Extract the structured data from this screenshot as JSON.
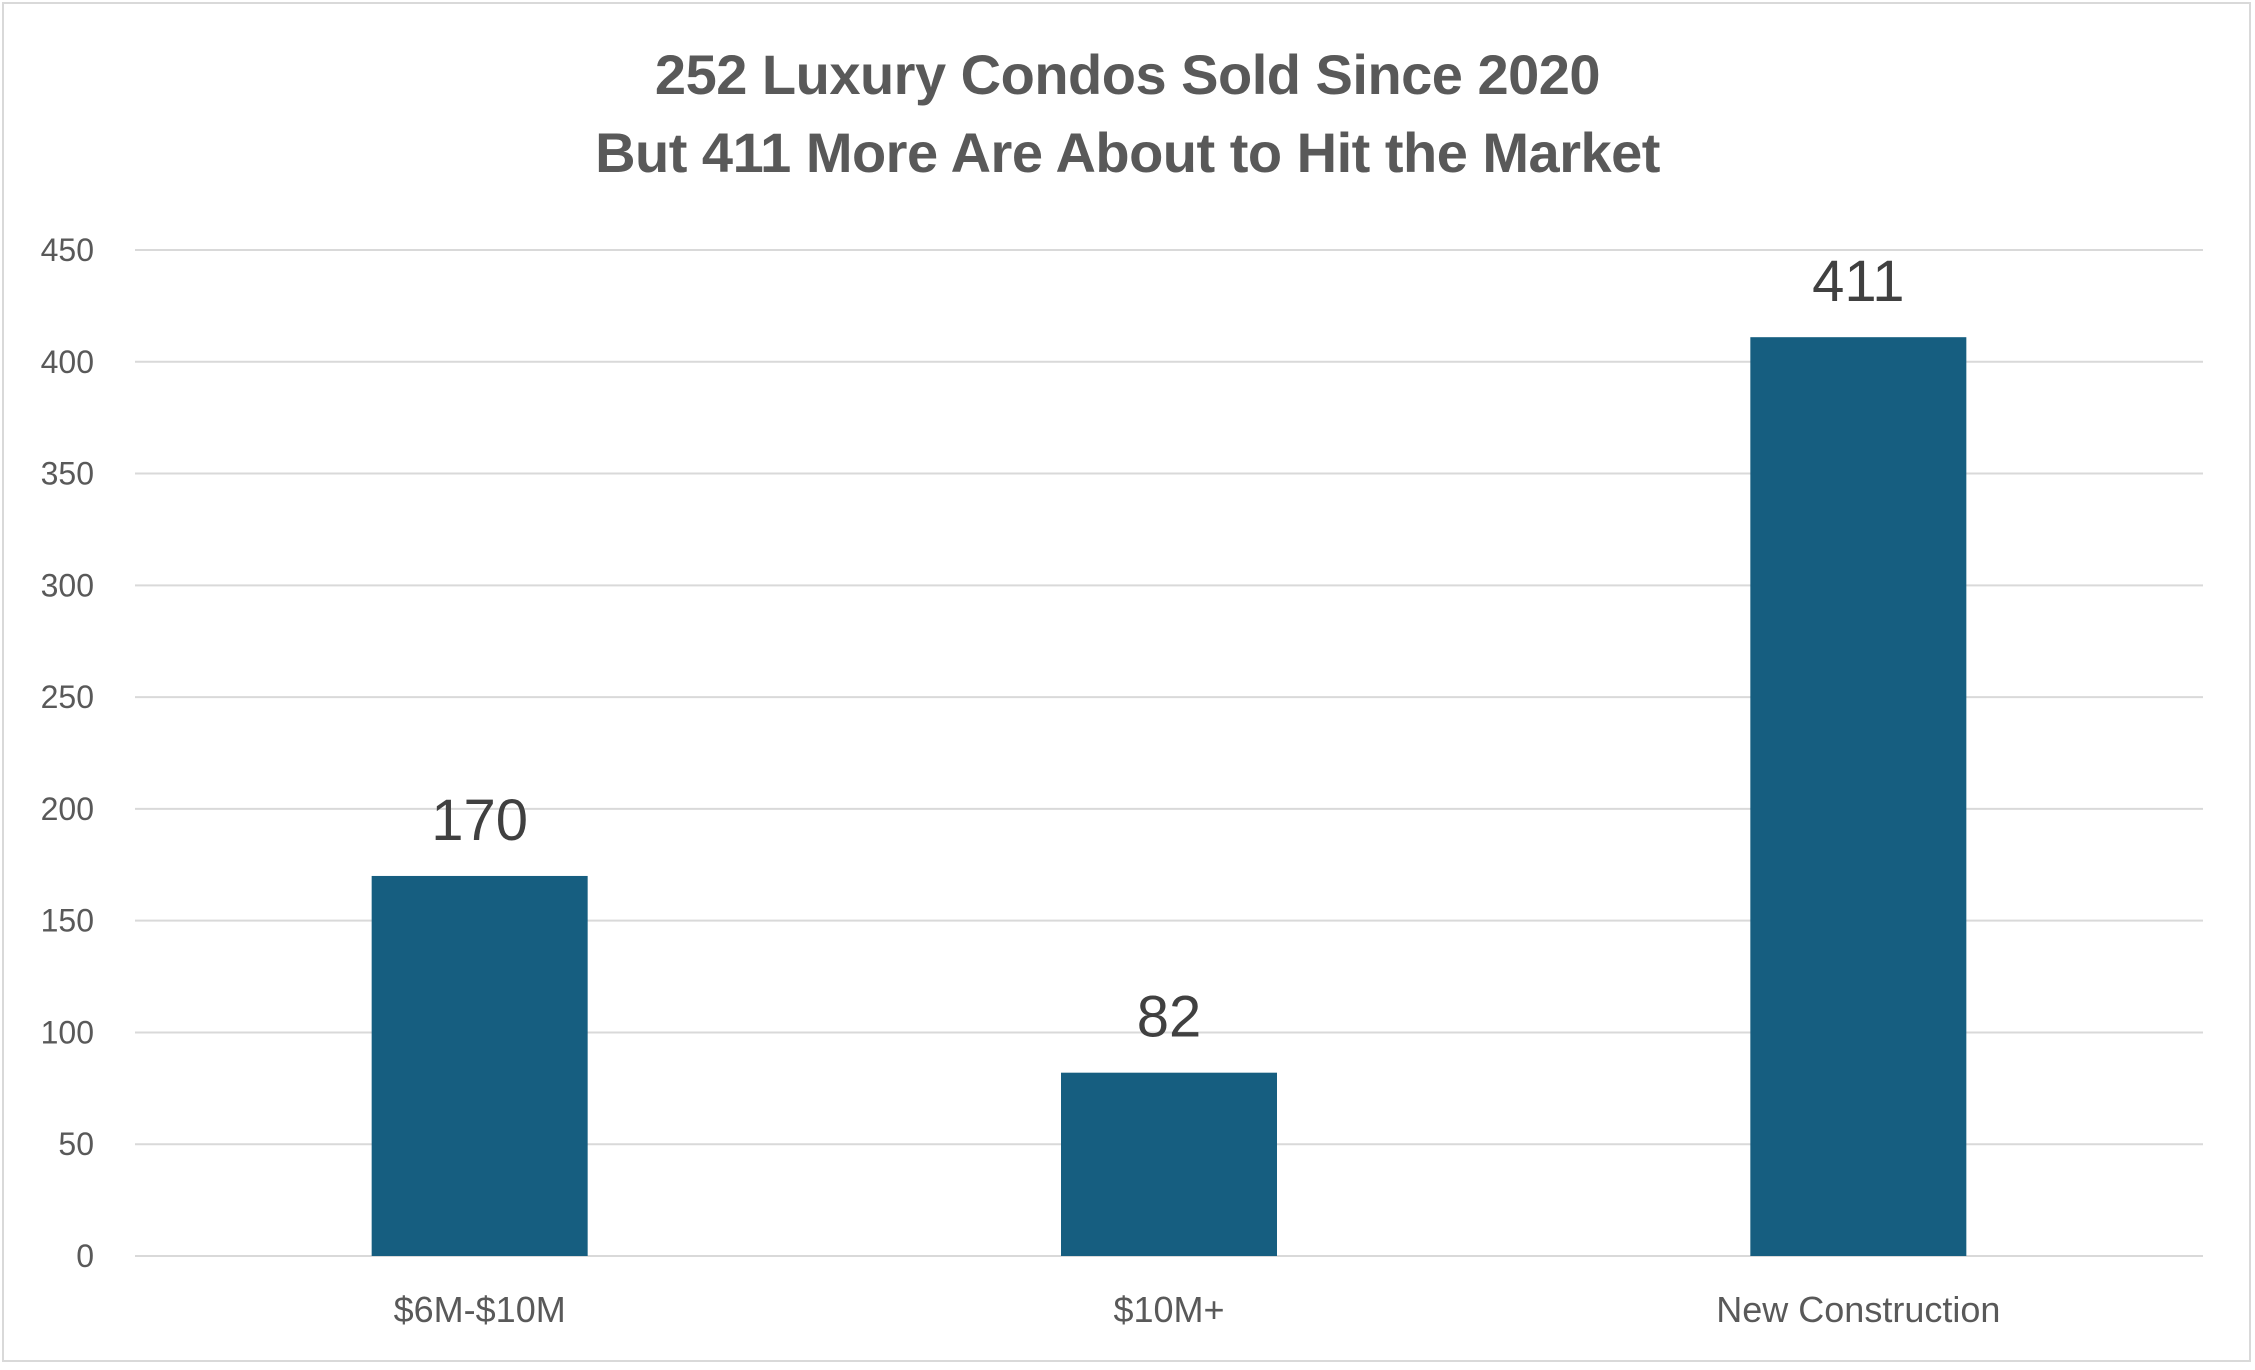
{
  "chart_data": {
    "type": "bar",
    "title": "252 Luxury Condos Sold Since 2020",
    "subtitle": "But 411 More Are About to Hit the Market",
    "categories": [
      "$6M-$10M",
      "$10M+",
      "New Construction"
    ],
    "values": [
      170,
      82,
      411
    ],
    "data_labels": [
      "170",
      "82",
      "411"
    ],
    "xlabel": "",
    "ylabel": "",
    "ylim": [
      0,
      450
    ],
    "yticks": [
      0,
      50,
      100,
      150,
      200,
      250,
      300,
      350,
      400,
      450
    ],
    "grid": true,
    "legend": "none",
    "bar_color": "#165e80",
    "grid_color": "#d9d9d9"
  }
}
